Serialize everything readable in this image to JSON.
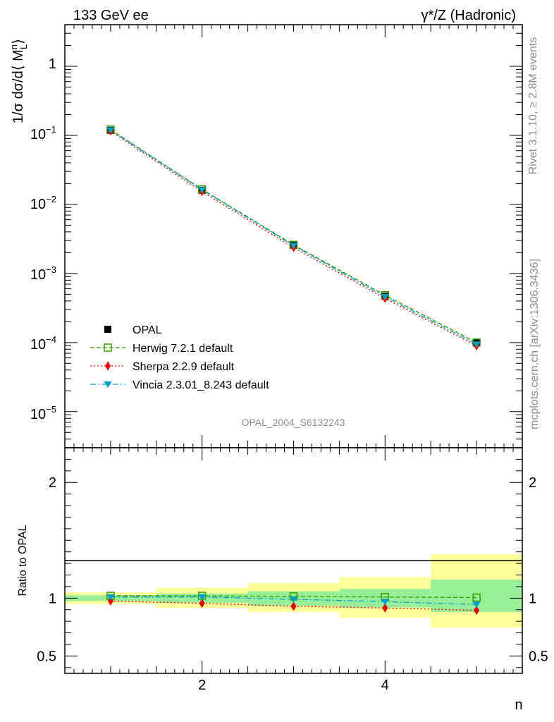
{
  "header": {
    "left_title": "133 GeV ee",
    "right_title": "γ*/Z (Hadronic)"
  },
  "side_labels": {
    "rivet": "Rivet 3.1.10, ≥ 2.8M events",
    "mcplots": "mcplots.cern.ch [arXiv:1306.3436]"
  },
  "analysis_id": "OPAL_2004_S6132243",
  "chart_data": [
    {
      "type": "line",
      "panel": "main",
      "title": "133 GeV ee",
      "ylabel": "1/σ dσ/d⟨ M_L^n ⟩",
      "yscale": "log",
      "ylim": [
        3e-06,
        4
      ],
      "xlim": [
        0.5,
        5.5
      ],
      "ytick_labels": [
        "1",
        "10^-1",
        "10^-2",
        "10^-3",
        "10^-4",
        "10^-5"
      ],
      "x": [
        1,
        2,
        3,
        4,
        5
      ],
      "data": {
        "name": "OPAL",
        "values": [
          0.118,
          0.016,
          0.00255,
          0.00047,
          0.0001
        ],
        "color": "#000000"
      },
      "series": [
        {
          "name": "Herwig 7.2.1 default",
          "values": [
            0.121,
            0.0165,
            0.0026,
            0.000485,
            0.0001
          ],
          "color": "#339900",
          "marker": "open-square",
          "dash": "dashed"
        },
        {
          "name": "Sherpa 2.2.9 default",
          "values": [
            0.115,
            0.0153,
            0.00238,
            0.000435,
            8.95e-05
          ],
          "color": "#e80000",
          "marker": "diamond",
          "dash": "dotted"
        },
        {
          "name": "Vincia 2.3.01_8.243 default",
          "values": [
            0.119,
            0.0162,
            0.00253,
            0.00046,
            9.45e-05
          ],
          "color": "#00a0cc",
          "marker": "triangle-down",
          "dash": "dashdot"
        }
      ],
      "legend_position": "lower-left"
    },
    {
      "type": "line",
      "panel": "ratio",
      "ylabel": "Ratio to OPAL",
      "xlabel": "n",
      "ylim": [
        0.35,
        2.3
      ],
      "xlim": [
        0.5,
        5.5
      ],
      "xtick_labels": [
        "2",
        "4"
      ],
      "ytick_labels": [
        "0.5",
        "1",
        "2"
      ],
      "bin_edges": [
        0.5,
        1.5,
        2.5,
        3.5,
        4.5,
        5.5
      ],
      "band_stat": [
        [
          0.975,
          1.025
        ],
        [
          0.96,
          1.04
        ],
        [
          0.935,
          1.06
        ],
        [
          0.92,
          1.08
        ],
        [
          0.88,
          1.16
        ]
      ],
      "band_total": [
        [
          0.95,
          1.05
        ],
        [
          0.915,
          1.09
        ],
        [
          0.88,
          1.13
        ],
        [
          0.83,
          1.18
        ],
        [
          0.745,
          1.38
        ]
      ],
      "series": [
        {
          "name": "Herwig 7.2.1 default",
          "values": [
            1.02,
            1.02,
            1.015,
            1.01,
            1.005
          ]
        },
        {
          "name": "Sherpa 2.2.9 default",
          "values": [
            0.975,
            0.955,
            0.93,
            0.915,
            0.895
          ]
        },
        {
          "name": "Vincia 2.3.01_8.243 default",
          "values": [
            1.01,
            1.01,
            0.99,
            0.97,
            0.945
          ]
        }
      ],
      "band_colors": {
        "stat": "#99ee99",
        "total": "#ffff99"
      }
    }
  ]
}
